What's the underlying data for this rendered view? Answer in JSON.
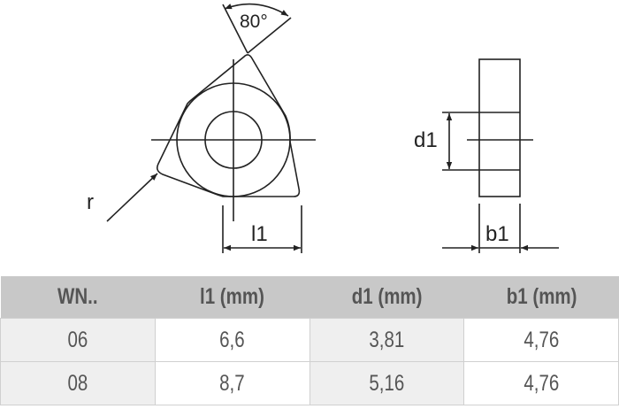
{
  "drawing": {
    "angle_label": "80°",
    "radius_label": "r",
    "l1_label": "l1",
    "d1_label": "d1",
    "b1_label": "b1"
  },
  "table": {
    "headers": [
      "WN..",
      "l1 (mm)",
      "d1 (mm)",
      "b1 (mm)"
    ],
    "rows": [
      [
        "06",
        "6,6",
        "3,81",
        "4,76"
      ],
      [
        "08",
        "8,7",
        "5,16",
        "4,76"
      ]
    ]
  },
  "colors": {
    "header_bg": "#c8c8c8",
    "alt_col_bg": "#efefef",
    "text": "#555555",
    "line": "#222222"
  }
}
